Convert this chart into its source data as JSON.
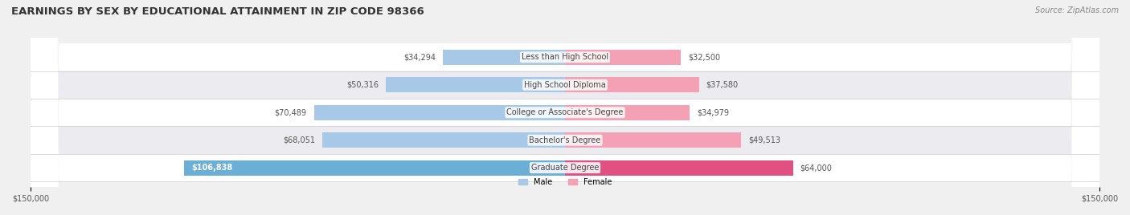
{
  "title": "EARNINGS BY SEX BY EDUCATIONAL ATTAINMENT IN ZIP CODE 98366",
  "source": "Source: ZipAtlas.com",
  "categories": [
    "Less than High School",
    "High School Diploma",
    "College or Associate's Degree",
    "Bachelor's Degree",
    "Graduate Degree"
  ],
  "male_values": [
    34294,
    50316,
    70489,
    68051,
    106838
  ],
  "female_values": [
    32500,
    37580,
    34979,
    49513,
    64000
  ],
  "male_labels": [
    "$34,294",
    "$50,316",
    "$70,489",
    "$68,051",
    "$106,838"
  ],
  "female_labels": [
    "$32,500",
    "$37,580",
    "$34,979",
    "$49,513",
    "$64,000"
  ],
  "male_color_light": "#a8c8e8",
  "male_color_dark": "#6baed6",
  "female_color_light": "#f4a0b5",
  "female_color_dark": "#e05080",
  "axis_max": 150000,
  "background_color": "#f0f0f0",
  "row_bg_color": "#e8e8ee",
  "title_fontsize": 10,
  "bar_height": 0.55,
  "x_tick_labels": [
    "$150,000",
    "$150,000"
  ]
}
